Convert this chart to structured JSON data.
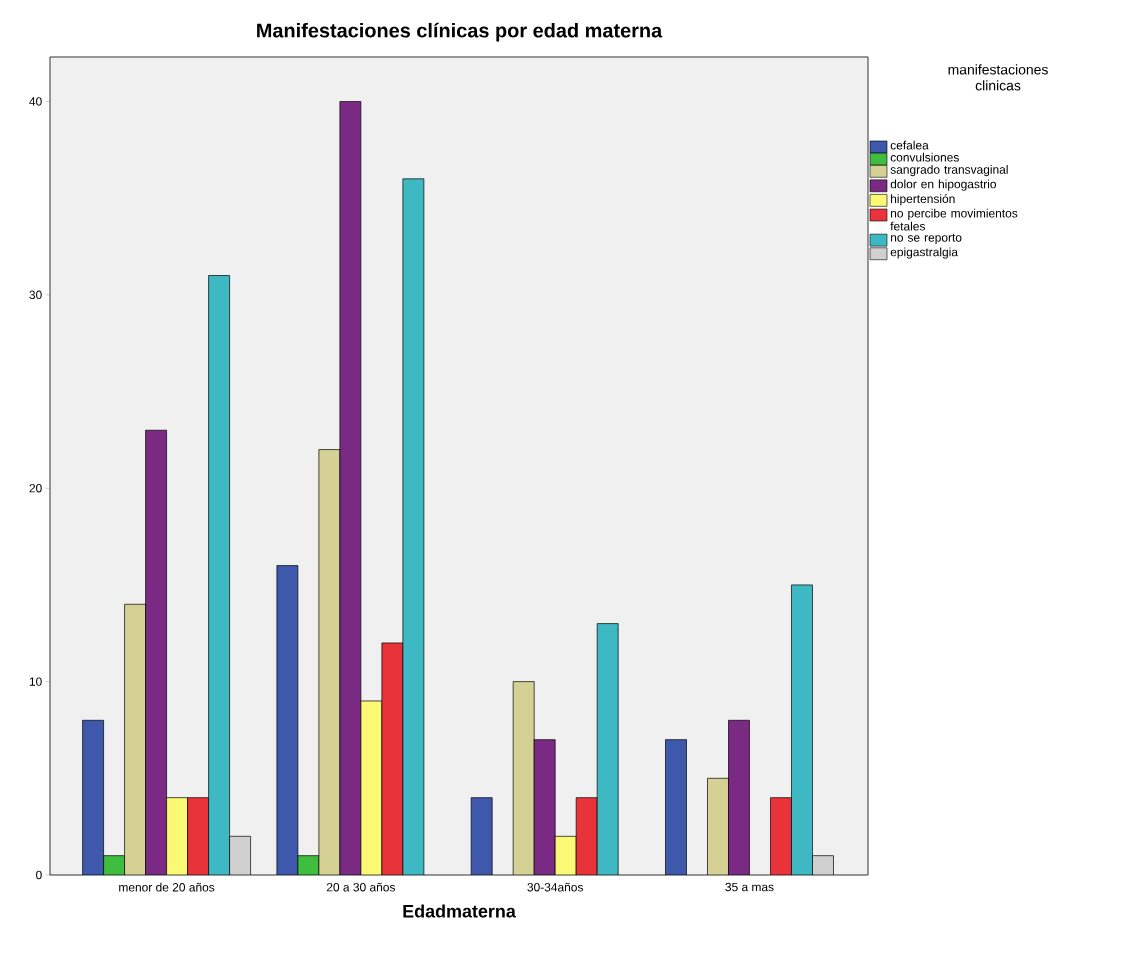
{
  "chart_data": {
    "type": "bar",
    "title": "Manifestaciones clínicas por edad materna",
    "xlabel": "Edadmaterna",
    "legend_title": "manifestaciones clinicas",
    "categories": [
      "menor de 20 años",
      "20 a 30 años",
      "30-34años",
      "35 a mas"
    ],
    "series": [
      {
        "name": "cefalea",
        "color": "#3e58ac",
        "values": [
          8,
          16,
          4,
          7
        ]
      },
      {
        "name": "convulsiones",
        "color": "#3ebd3e",
        "values": [
          1,
          1,
          null,
          null
        ]
      },
      {
        "name": "sangrado transvaginal",
        "color": "#d5d195",
        "values": [
          14,
          22,
          10,
          5
        ]
      },
      {
        "name": "dolor en hipogastrio",
        "color": "#7b2a83",
        "values": [
          23,
          40,
          7,
          8
        ]
      },
      {
        "name": "hipertensión",
        "color": "#fbf873",
        "values": [
          4,
          9,
          2,
          null
        ]
      },
      {
        "name": "no percibe movimientos fetales",
        "color": "#e8333b",
        "values": [
          4,
          12,
          4,
          4
        ]
      },
      {
        "name": "no se reporto",
        "color": "#3eb9c3",
        "values": [
          31,
          36,
          13,
          15
        ]
      },
      {
        "name": "epigastralgia",
        "color": "#d0d0d0",
        "values": [
          2,
          null,
          null,
          1
        ]
      }
    ],
    "ylim": [
      0,
      42.3
    ],
    "yticks": [
      0,
      10,
      20,
      30,
      40
    ],
    "grid": false,
    "legend": "right"
  }
}
